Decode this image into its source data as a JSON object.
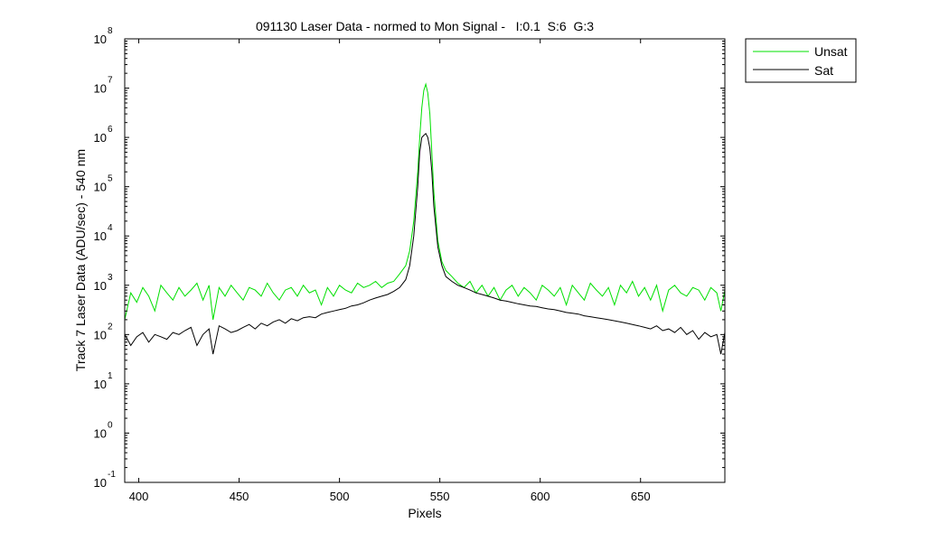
{
  "chart_data": {
    "type": "line",
    "title": "091130 Laser Data - normed to Mon Signal -   I:0.1  S:6  G:3",
    "xlabel": "Pixels",
    "ylabel": "Track 7 Laser Data (ADU/sec) - 540 nm",
    "xlim": [
      393,
      692
    ],
    "ylim": [
      0.1,
      100000000
    ],
    "yscale": "log",
    "x_ticks": [
      400,
      450,
      500,
      550,
      600,
      650
    ],
    "y_ticks": [
      {
        "base": "10",
        "exp": "-1",
        "value": 0.1
      },
      {
        "base": "10",
        "exp": "0",
        "value": 1
      },
      {
        "base": "10",
        "exp": "1",
        "value": 10
      },
      {
        "base": "10",
        "exp": "2",
        "value": 100
      },
      {
        "base": "10",
        "exp": "3",
        "value": 1000
      },
      {
        "base": "10",
        "exp": "4",
        "value": 10000
      },
      {
        "base": "10",
        "exp": "5",
        "value": 100000
      },
      {
        "base": "10",
        "exp": "6",
        "value": 1000000
      },
      {
        "base": "10",
        "exp": "7",
        "value": 10000000
      },
      {
        "base": "10",
        "exp": "8",
        "value": 100000000
      }
    ],
    "grid": false,
    "legend_position": "outside-top-right",
    "series": [
      {
        "name": "Unsat",
        "color": "#00e000",
        "x": [
          393,
          396,
          399,
          402,
          405,
          408,
          411,
          414,
          417,
          420,
          423,
          426,
          429,
          432,
          435,
          437,
          440,
          443,
          446,
          449,
          452,
          455,
          458,
          461,
          464,
          467,
          470,
          473,
          476,
          479,
          482,
          485,
          488,
          491,
          494,
          497,
          500,
          503,
          506,
          509,
          512,
          515,
          518,
          521,
          524,
          527,
          530,
          533,
          535,
          537,
          539,
          540,
          541,
          542,
          543,
          544,
          545,
          546,
          547,
          549,
          551,
          553,
          556,
          559,
          562,
          565,
          568,
          571,
          574,
          577,
          580,
          583,
          586,
          589,
          592,
          595,
          598,
          601,
          604,
          607,
          610,
          613,
          616,
          619,
          622,
          625,
          628,
          631,
          634,
          637,
          640,
          643,
          646,
          649,
          652,
          655,
          658,
          661,
          664,
          667,
          670,
          673,
          676,
          679,
          682,
          685,
          688,
          690,
          692
        ],
        "y": [
          200,
          700,
          450,
          900,
          600,
          300,
          1000,
          700,
          500,
          900,
          600,
          800,
          1100,
          500,
          1000,
          200,
          900,
          600,
          1000,
          700,
          500,
          900,
          800,
          600,
          1100,
          700,
          500,
          800,
          900,
          600,
          1000,
          700,
          800,
          400,
          900,
          600,
          1000,
          800,
          700,
          1100,
          900,
          1000,
          1200,
          900,
          1100,
          1200,
          1700,
          2500,
          5000,
          20000,
          200000,
          1000000,
          4000000,
          9000000,
          12000000,
          8000000,
          3000000,
          500000,
          80000,
          8000,
          3000,
          2000,
          1500,
          1100,
          900,
          1200,
          700,
          1000,
          600,
          900,
          500,
          800,
          1000,
          600,
          900,
          700,
          500,
          1000,
          800,
          600,
          900,
          400,
          1000,
          700,
          500,
          1100,
          800,
          600,
          900,
          400,
          1000,
          700,
          1200,
          600,
          900,
          500,
          1000,
          300,
          800,
          1000,
          700,
          600,
          900,
          800,
          500,
          900,
          700,
          300,
          800
        ]
      },
      {
        "name": "Sat",
        "color": "#000000",
        "x": [
          393,
          396,
          399,
          402,
          405,
          408,
          411,
          414,
          417,
          420,
          423,
          426,
          429,
          432,
          435,
          437,
          440,
          443,
          446,
          449,
          452,
          455,
          458,
          461,
          464,
          467,
          470,
          473,
          476,
          479,
          482,
          485,
          488,
          491,
          494,
          497,
          500,
          503,
          506,
          509,
          512,
          515,
          518,
          521,
          524,
          527,
          530,
          533,
          535,
          537,
          539,
          540,
          541,
          542,
          543,
          544,
          545,
          546,
          547,
          549,
          551,
          553,
          556,
          559,
          562,
          565,
          568,
          571,
          574,
          577,
          580,
          583,
          586,
          589,
          592,
          595,
          598,
          601,
          604,
          607,
          610,
          613,
          616,
          619,
          622,
          625,
          628,
          631,
          634,
          637,
          640,
          643,
          646,
          649,
          652,
          655,
          658,
          661,
          664,
          667,
          670,
          673,
          676,
          679,
          682,
          685,
          688,
          690,
          692
        ],
        "y": [
          100,
          60,
          90,
          110,
          70,
          100,
          90,
          80,
          110,
          100,
          120,
          140,
          60,
          100,
          130,
          40,
          150,
          130,
          110,
          120,
          140,
          160,
          130,
          170,
          150,
          180,
          200,
          170,
          210,
          190,
          220,
          230,
          220,
          260,
          280,
          300,
          320,
          340,
          380,
          400,
          440,
          500,
          550,
          600,
          650,
          750,
          900,
          1300,
          2500,
          10000,
          100000,
          500000,
          1000000,
          1100000,
          1200000,
          1000000,
          600000,
          200000,
          40000,
          6000,
          2500,
          1500,
          1200,
          1000,
          900,
          800,
          700,
          650,
          600,
          550,
          500,
          480,
          450,
          420,
          400,
          380,
          370,
          350,
          330,
          320,
          300,
          280,
          270,
          260,
          240,
          230,
          220,
          210,
          200,
          190,
          180,
          170,
          160,
          150,
          140,
          130,
          150,
          120,
          130,
          110,
          140,
          100,
          120,
          80,
          110,
          90,
          100,
          40,
          110
        ]
      }
    ]
  }
}
